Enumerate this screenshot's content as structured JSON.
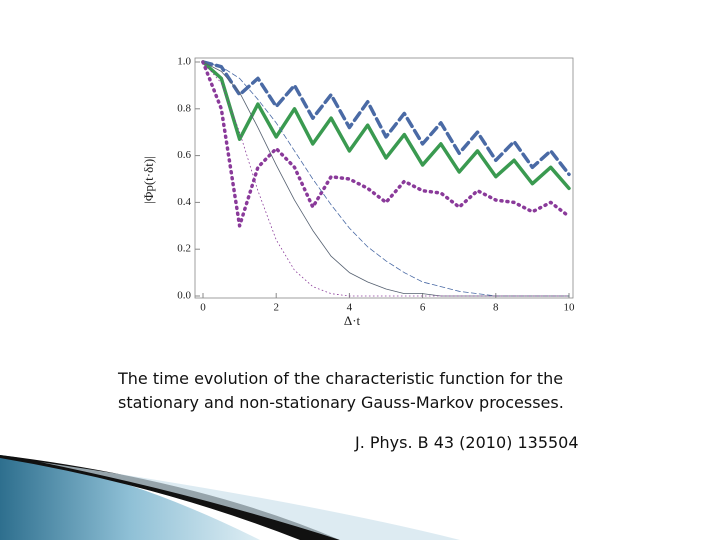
{
  "chart_data": {
    "type": "line",
    "x": [
      0,
      0.5,
      1,
      1.5,
      2,
      2.5,
      3,
      3.5,
      4,
      4.5,
      5,
      5.5,
      6,
      6.5,
      7,
      7.5,
      8,
      8.5,
      9,
      9.5,
      10
    ],
    "series": [
      {
        "color": "#4a6aa5",
        "linestyle": "dashed",
        "linewidth": 3.5,
        "values": [
          1.0,
          0.98,
          0.86,
          0.93,
          0.81,
          0.9,
          0.76,
          0.86,
          0.72,
          0.83,
          0.68,
          0.78,
          0.65,
          0.74,
          0.61,
          0.7,
          0.58,
          0.66,
          0.55,
          0.62,
          0.52
        ]
      },
      {
        "color": "#3a9a50",
        "linestyle": "solid",
        "linewidth": 3.5,
        "values": [
          1.0,
          0.93,
          0.67,
          0.82,
          0.68,
          0.8,
          0.65,
          0.76,
          0.62,
          0.73,
          0.59,
          0.69,
          0.56,
          0.65,
          0.53,
          0.62,
          0.51,
          0.58,
          0.48,
          0.55,
          0.46
        ]
      },
      {
        "color": "#8a3a9a",
        "linestyle": "dotted",
        "linewidth": 3.5,
        "values": [
          1.0,
          0.8,
          0.3,
          0.55,
          0.63,
          0.55,
          0.38,
          0.51,
          0.5,
          0.46,
          0.4,
          0.49,
          0.45,
          0.44,
          0.38,
          0.45,
          0.41,
          0.4,
          0.36,
          0.4,
          0.34
        ]
      },
      {
        "color": "#4a6aa5",
        "linestyle": "dashed",
        "linewidth": 0.8,
        "values": [
          1.0,
          0.98,
          0.93,
          0.84,
          0.74,
          0.62,
          0.5,
          0.39,
          0.29,
          0.21,
          0.15,
          0.1,
          0.06,
          0.04,
          0.02,
          0.01,
          0,
          0,
          0,
          0,
          0
        ]
      },
      {
        "color": "#556070",
        "linestyle": "solid",
        "linewidth": 0.8,
        "values": [
          1.0,
          0.96,
          0.87,
          0.72,
          0.56,
          0.41,
          0.28,
          0.17,
          0.1,
          0.06,
          0.03,
          0.01,
          0.01,
          0,
          0,
          0,
          0,
          0,
          0,
          0,
          0
        ]
      },
      {
        "color": "#8a3a9a",
        "linestyle": "dotted",
        "linewidth": 0.8,
        "values": [
          1.0,
          0.91,
          0.7,
          0.45,
          0.24,
          0.11,
          0.04,
          0.01,
          0,
          0,
          0,
          0,
          0,
          0,
          0,
          0,
          0,
          0,
          0,
          0,
          0
        ]
      }
    ],
    "xlabel": "Δ·t",
    "ylabel": "|Φp(t·δt)|",
    "xlim": [
      0,
      10
    ],
    "xticks": [
      0,
      2,
      4,
      6,
      8,
      10
    ],
    "ylim": [
      0,
      1
    ],
    "yticks": [
      {
        "value": 1,
        "label": "1.0"
      },
      {
        "value": 0.8,
        "label": "0.8"
      },
      {
        "value": 0.6,
        "label": "0.6"
      },
      {
        "value": 0.4,
        "label": "0.4"
      },
      {
        "value": 0.2,
        "label": "0.2"
      },
      {
        "value": 0,
        "label": "0.0"
      }
    ]
  },
  "caption": [
    "The time evolution of the characteristic function for the",
    "stationary and non-stationary Gauss-Markov processes."
  ],
  "citation": "J. Phys. B 43 (2010) 135504"
}
